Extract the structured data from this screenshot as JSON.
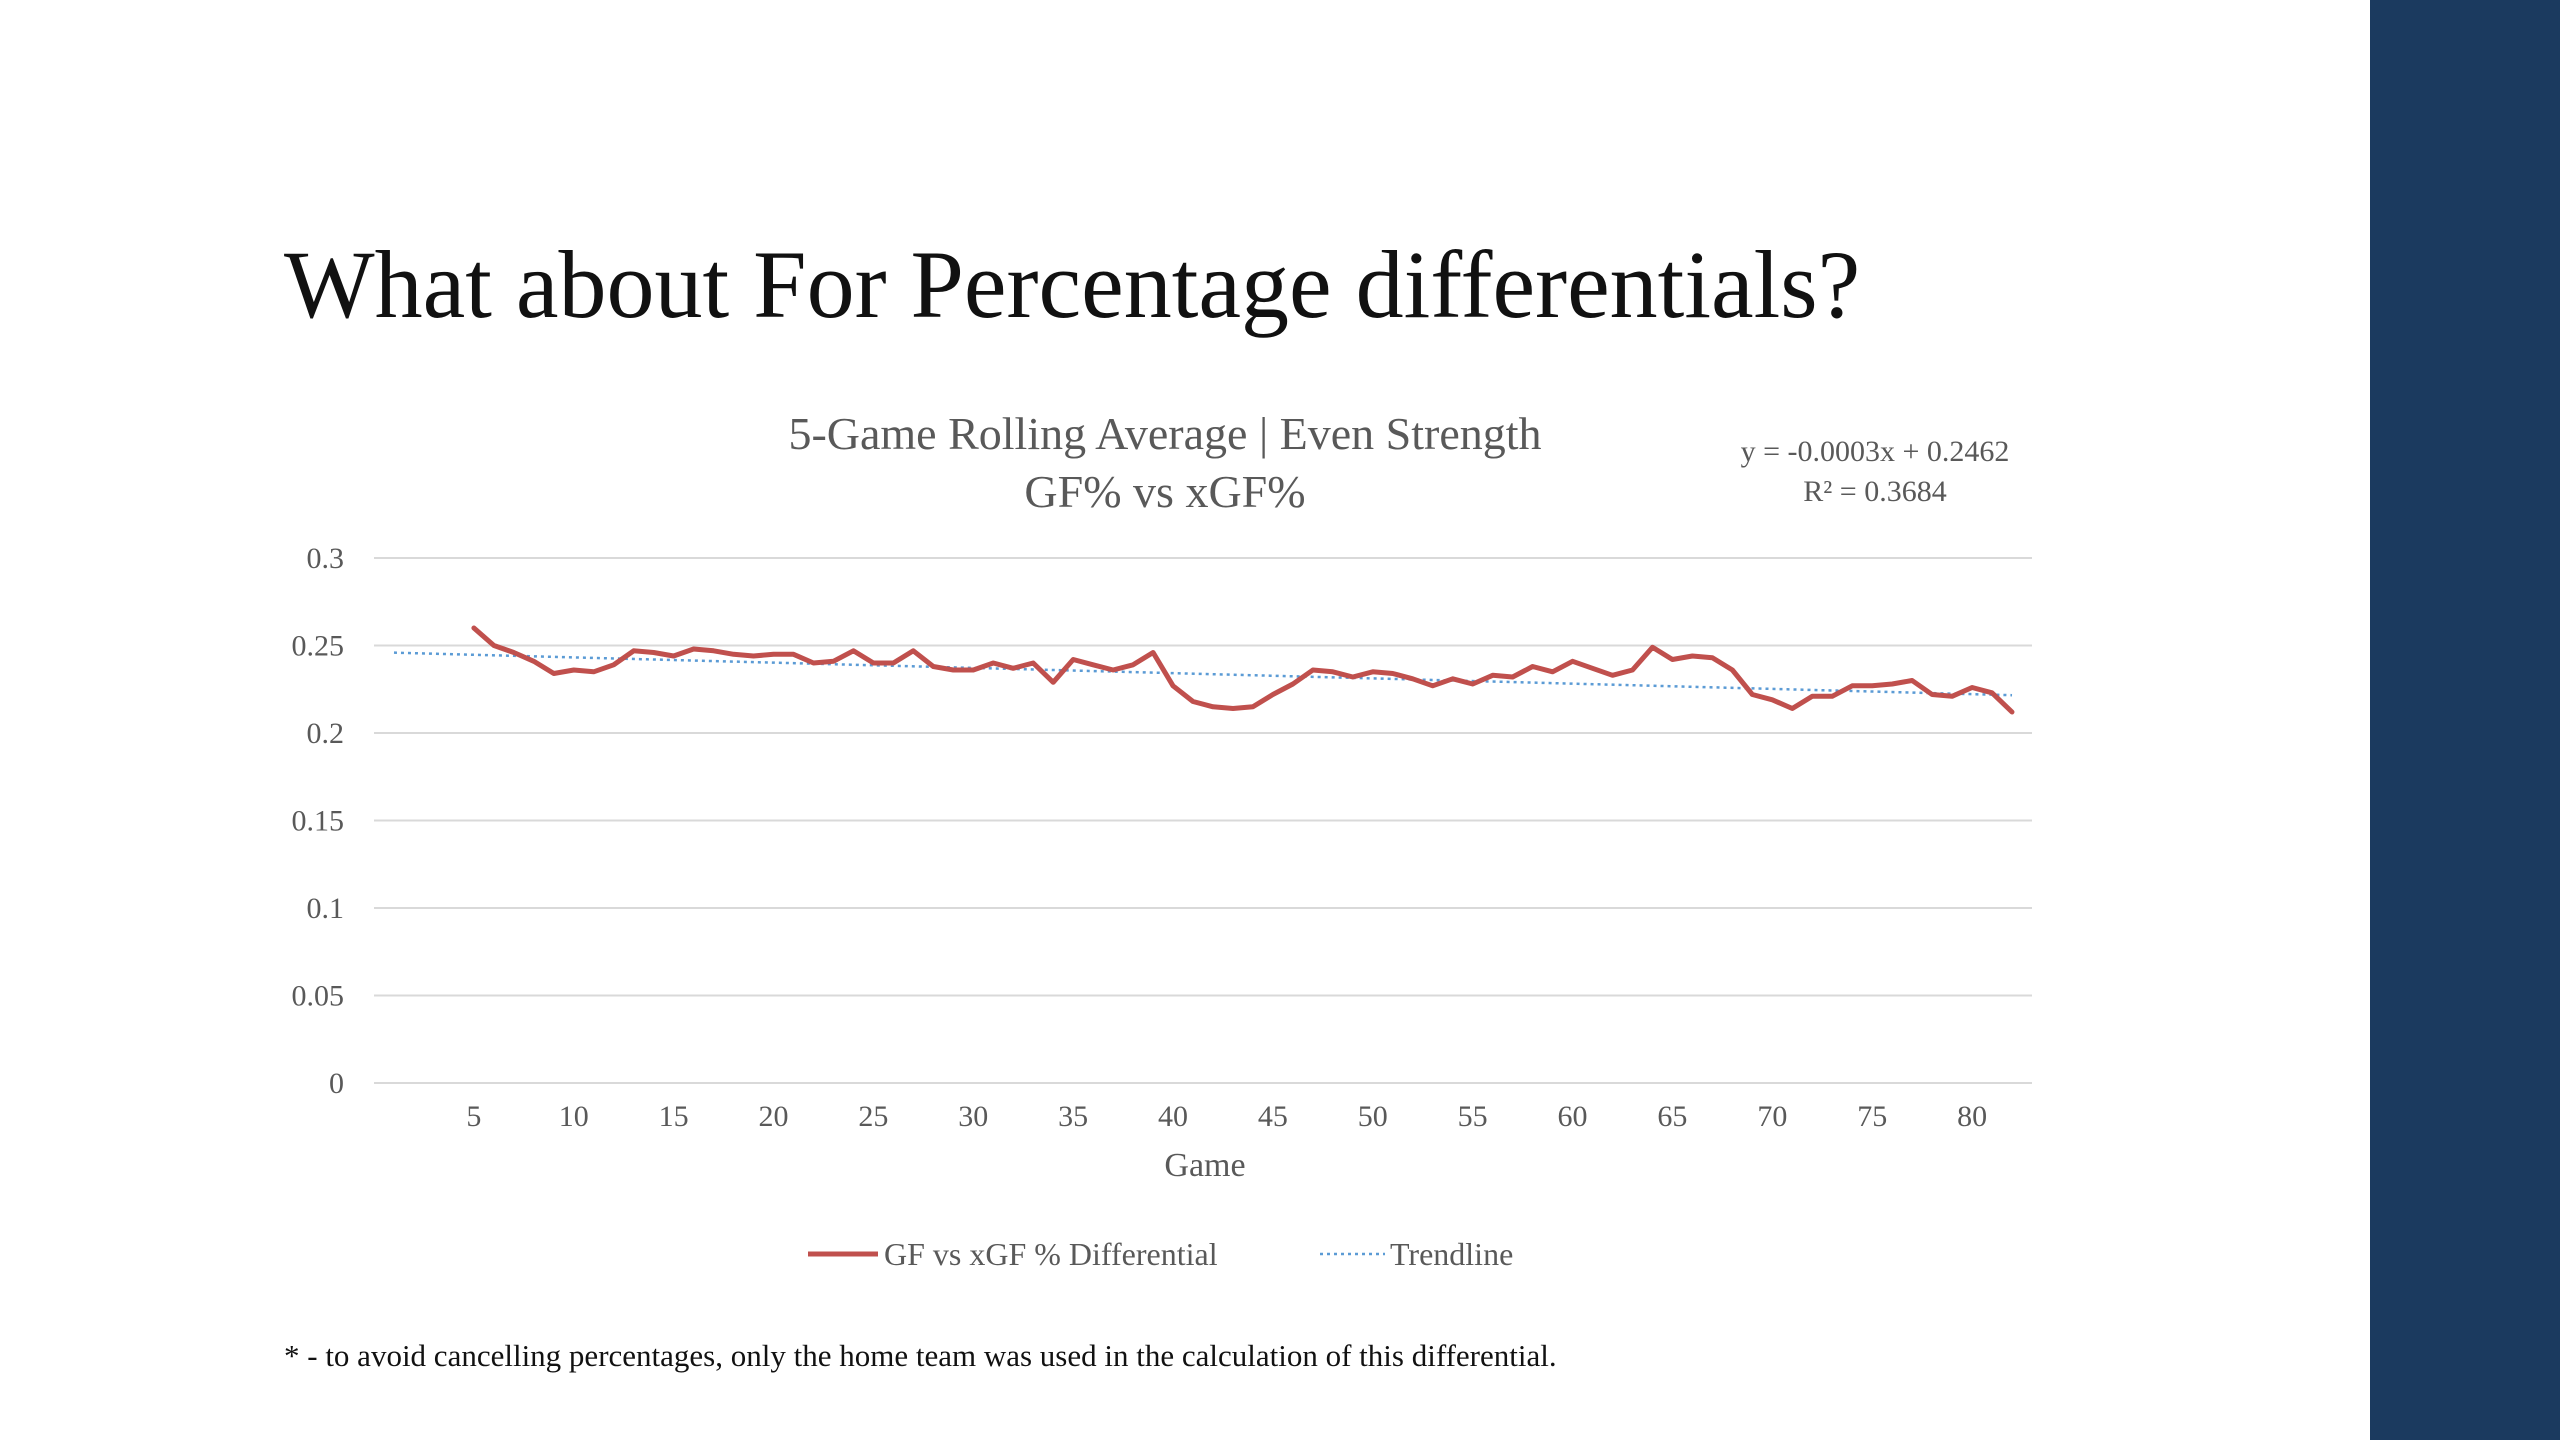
{
  "slide": {
    "title": "What about For Percentage differentials?",
    "footnote": "* - to avoid cancelling percentages, only the home team was used in the calculation of this differential.",
    "accent_color": "#1b3a5f"
  },
  "chart_data": {
    "type": "line",
    "title_line1": "5-Game Rolling Average |  Even Strength",
    "title_line2": "GF% vs xGF%",
    "xlabel": "Game",
    "ylabel": "",
    "x_ticks": [
      5,
      10,
      15,
      20,
      25,
      30,
      35,
      40,
      45,
      50,
      55,
      60,
      65,
      70,
      75,
      80
    ],
    "y_ticks": [
      "0",
      "0.05",
      "0.1",
      "0.15",
      "0.2",
      "0.25",
      "0.3"
    ],
    "xlim": [
      0,
      83
    ],
    "ylim": [
      0,
      0.3
    ],
    "grid": true,
    "legend_position": "bottom",
    "trendline": {
      "equation": "y = -0.0003x + 0.2462",
      "r_squared": "R² = 0.3684",
      "slope": -0.0003,
      "intercept": 0.2462,
      "color": "#5b9bd5"
    },
    "series": [
      {
        "name": "GF vs xGF % Differential",
        "color": "#c0504d",
        "x": [
          5,
          6,
          7,
          8,
          9,
          10,
          11,
          12,
          13,
          14,
          15,
          16,
          17,
          18,
          19,
          20,
          21,
          22,
          23,
          24,
          25,
          26,
          27,
          28,
          29,
          30,
          31,
          32,
          33,
          34,
          35,
          36,
          37,
          38,
          39,
          40,
          41,
          42,
          43,
          44,
          45,
          46,
          47,
          48,
          49,
          50,
          51,
          52,
          53,
          54,
          55,
          56,
          57,
          58,
          59,
          60,
          61,
          62,
          63,
          64,
          65,
          66,
          67,
          68,
          69,
          70,
          71,
          72,
          73,
          74,
          75,
          76,
          77,
          78,
          79,
          80,
          81,
          82
        ],
        "values": [
          0.26,
          0.25,
          0.246,
          0.241,
          0.234,
          0.236,
          0.235,
          0.239,
          0.247,
          0.246,
          0.244,
          0.248,
          0.247,
          0.245,
          0.244,
          0.245,
          0.245,
          0.24,
          0.241,
          0.247,
          0.24,
          0.24,
          0.247,
          0.238,
          0.236,
          0.236,
          0.24,
          0.237,
          0.24,
          0.229,
          0.242,
          0.239,
          0.236,
          0.239,
          0.246,
          0.227,
          0.218,
          0.215,
          0.214,
          0.215,
          0.222,
          0.228,
          0.236,
          0.235,
          0.232,
          0.235,
          0.234,
          0.231,
          0.227,
          0.231,
          0.228,
          0.233,
          0.232,
          0.238,
          0.235,
          0.241,
          0.237,
          0.233,
          0.236,
          0.249,
          0.242,
          0.244,
          0.243,
          0.236,
          0.222,
          0.219,
          0.214,
          0.221,
          0.221,
          0.227,
          0.227,
          0.228,
          0.23,
          0.222,
          0.221,
          0.226,
          0.223,
          0.212
        ]
      },
      {
        "name": "Trendline",
        "color": "#5b9bd5"
      }
    ]
  }
}
